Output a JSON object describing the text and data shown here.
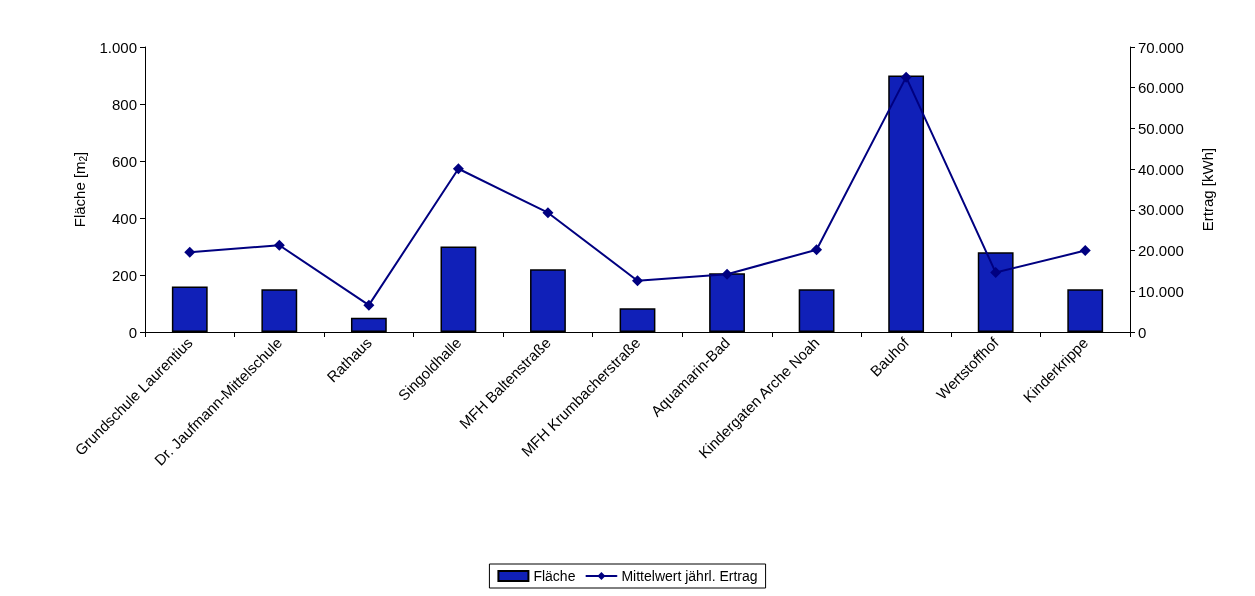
{
  "chart_data": {
    "type": "bar",
    "categories": [
      "Grundschule Laurentius",
      "Dr. Jaufmann-Mittelschule",
      "Rathaus",
      "Singoldhalle",
      "MFH Baltenstraße",
      "MFH Krumbacherstraße",
      "Aquamarin-Bad",
      "Kindergaten Arche Noah",
      "Bauhof",
      "Wertstoffhof",
      "Kinderkrippe"
    ],
    "series": [
      {
        "name": "Fläche",
        "color": "#1020b8",
        "values": [
          160,
          150,
          50,
          300,
          220,
          83,
          206,
          150,
          900,
          280,
          150
        ]
      },
      {
        "name": "Mittelwert jährl. Ertrag",
        "type": "line",
        "axis": "y2",
        "color": "#000080",
        "values": [
          19600,
          21300,
          6600,
          40100,
          29300,
          12600,
          14200,
          20200,
          62600,
          14600,
          20000
        ]
      }
    ],
    "ylabel": "Fläche [m$_{2}$]",
    "y2label": "Ertrag [kWh]",
    "ylim": [
      0,
      1000
    ],
    "yticks": [
      0,
      200,
      400,
      600,
      800,
      {
        "value": 1000,
        "label": "1.000"
      }
    ],
    "y2lim": [
      0,
      70000
    ],
    "y2ticks": [
      0,
      {
        "value": 10000,
        "label": "10.000"
      },
      {
        "value": 20000,
        "label": "20.000"
      },
      {
        "value": 30000,
        "label": "30.000"
      },
      {
        "value": 40000,
        "label": "40.000"
      },
      {
        "value": 50000,
        "label": "50.000"
      },
      {
        "value": 60000,
        "label": "60.000"
      },
      {
        "value": 70000,
        "label": "70.000"
      }
    ],
    "legend": "bottom",
    "grid": false,
    "marker": "diamond"
  }
}
